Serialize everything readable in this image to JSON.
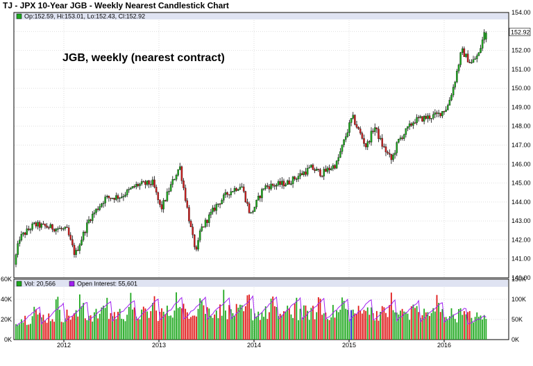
{
  "chart_data": [
    {
      "type": "candlestick",
      "title": "TJ - JPX 10-Year JGB - Weekly Nearest Candlestick Chart",
      "annotation": "JGB, weekly (nearest contract)",
      "legend": {
        "text": "Op:152.59, Hi:153.01, Lo:152.43, Cl:152.92",
        "placement": "top-left",
        "swatch_color": "#1fa81f"
      },
      "last_price_label": "152.92",
      "ylim": [
        140,
        154
      ],
      "y_ticks": [
        "154.00",
        "153.00",
        "152.00",
        "151.00",
        "150.00",
        "149.00",
        "148.00",
        "147.00",
        "146.00",
        "145.00",
        "144.00",
        "143.00",
        "142.00",
        "141.00",
        "140.00"
      ],
      "x_ticks": [
        "2012",
        "2013",
        "2014",
        "2015",
        "2016"
      ],
      "grid": true,
      "colors": {
        "up": "#1fa81f",
        "down": "#cc1f1f",
        "wick": "#000000"
      },
      "anchors": [
        {
          "x": "2011-07-01",
          "y": 140.7
        },
        {
          "x": "2011-07-22",
          "y": 142.1
        },
        {
          "x": "2011-09-15",
          "y": 142.8
        },
        {
          "x": "2011-12-15",
          "y": 142.6
        },
        {
          "x": "2012-01-20",
          "y": 142.5
        },
        {
          "x": "2012-02-20",
          "y": 141.2
        },
        {
          "x": "2012-04-15",
          "y": 143.1
        },
        {
          "x": "2012-06-15",
          "y": 144.2
        },
        {
          "x": "2012-08-15",
          "y": 144.3
        },
        {
          "x": "2012-10-15",
          "y": 144.9
        },
        {
          "x": "2012-12-15",
          "y": 145.0
        },
        {
          "x": "2013-01-15",
          "y": 143.6
        },
        {
          "x": "2013-02-20",
          "y": 144.8
        },
        {
          "x": "2013-03-28",
          "y": 145.9
        },
        {
          "x": "2013-05-15",
          "y": 142.2
        },
        {
          "x": "2013-06-01",
          "y": 141.3
        },
        {
          "x": "2013-06-15",
          "y": 142.5
        },
        {
          "x": "2013-08-15",
          "y": 143.8
        },
        {
          "x": "2013-10-01",
          "y": 144.5
        },
        {
          "x": "2013-11-20",
          "y": 144.9
        },
        {
          "x": "2013-12-25",
          "y": 143.3
        },
        {
          "x": "2014-02-15",
          "y": 144.8
        },
        {
          "x": "2014-05-15",
          "y": 145.0
        },
        {
          "x": "2014-08-15",
          "y": 145.8
        },
        {
          "x": "2014-09-25",
          "y": 145.5
        },
        {
          "x": "2014-11-20",
          "y": 146.0
        },
        {
          "x": "2015-01-20",
          "y": 148.5
        },
        {
          "x": "2015-03-15",
          "y": 146.9
        },
        {
          "x": "2015-04-15",
          "y": 148.0
        },
        {
          "x": "2015-05-15",
          "y": 147.0
        },
        {
          "x": "2015-06-20",
          "y": 146.2
        },
        {
          "x": "2015-07-15",
          "y": 147.2
        },
        {
          "x": "2015-09-15",
          "y": 148.3
        },
        {
          "x": "2015-12-15",
          "y": 148.6
        },
        {
          "x": "2016-01-20",
          "y": 149.0
        },
        {
          "x": "2016-02-15",
          "y": 150.2
        },
        {
          "x": "2016-03-15",
          "y": 152.0
        },
        {
          "x": "2016-04-20",
          "y": 151.3
        },
        {
          "x": "2016-05-20",
          "y": 151.8
        },
        {
          "x": "2016-06-10",
          "y": 152.9
        }
      ],
      "last_bar": {
        "open": 152.59,
        "high": 153.01,
        "low": 152.43,
        "close": 152.92
      }
    },
    {
      "type": "bar+line",
      "legend": [
        {
          "text": "Vol: 20,566",
          "color": "#1fa81f"
        },
        {
          "text": "Open Interest: 55,601",
          "color": "#a020f0"
        }
      ],
      "left_axis": {
        "name": "volume",
        "ylim": [
          0,
          60000
        ],
        "ticks": [
          "60K",
          "40K",
          "20K",
          "0K"
        ]
      },
      "right_axis": {
        "name": "open interest",
        "ylim": [
          0,
          150000
        ],
        "ticks": [
          "150K",
          "100K",
          "50K",
          "0K"
        ]
      },
      "volume_profile": [
        {
          "x": "2011-07-01",
          "y": 20000
        },
        {
          "x": "2012-01-01",
          "y": 24000
        },
        {
          "x": "2013-01-01",
          "y": 26000
        },
        {
          "x": "2013-06-01",
          "y": 30000
        },
        {
          "x": "2014-01-01",
          "y": 26000
        },
        {
          "x": "2015-01-01",
          "y": 27000
        },
        {
          "x": "2016-01-01",
          "y": 26000
        },
        {
          "x": "2016-06-10",
          "y": 20566
        }
      ],
      "open_interest_profile": [
        {
          "x": "2011-07-01",
          "y": 60000
        },
        {
          "x": "2012-01-01",
          "y": 75000
        },
        {
          "x": "2013-01-01",
          "y": 85000
        },
        {
          "x": "2014-01-01",
          "y": 90000
        },
        {
          "x": "2015-01-01",
          "y": 85000
        },
        {
          "x": "2016-01-01",
          "y": 80000
        },
        {
          "x": "2016-06-10",
          "y": 55601
        }
      ],
      "roll_months": [
        3,
        6,
        9,
        12
      ],
      "colors": {
        "volume_up": "#1fa81f",
        "volume_down": "#e01818",
        "volume_highlight": "#1f1fcc",
        "open_interest": "#a020f0"
      }
    }
  ]
}
